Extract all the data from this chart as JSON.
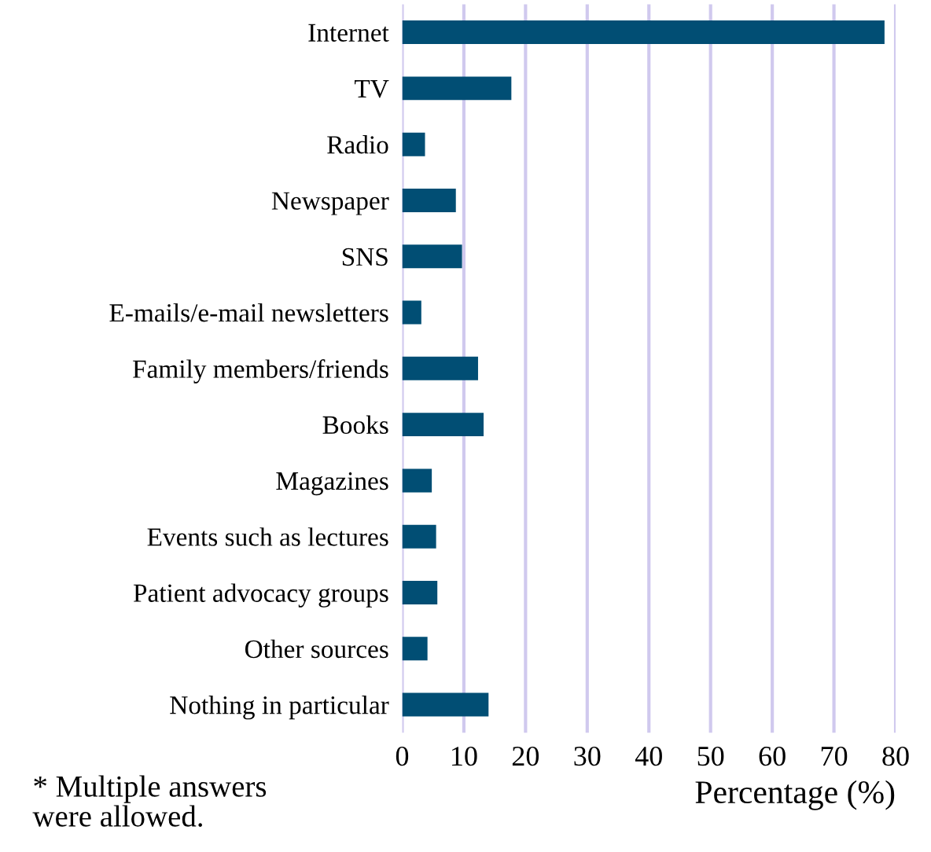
{
  "chart_data": {
    "type": "bar",
    "orientation": "horizontal",
    "categories": [
      "Internet",
      "TV",
      "Radio",
      "Newspaper",
      "SNS",
      "E-mails/e-mail newsletters",
      "Family members/friends",
      "Books",
      "Magazines",
      "Events such as lectures",
      "Patient advocacy groups",
      "Other sources",
      "Nothing in particular"
    ],
    "values": [
      78.2,
      17.7,
      3.7,
      8.7,
      9.7,
      3.1,
      12.3,
      13.2,
      4.8,
      5.5,
      5.7,
      4.1,
      14.0
    ],
    "color": "#014e74",
    "xlim": [
      0,
      80
    ],
    "xticks": [
      0,
      10,
      20,
      30,
      40,
      50,
      60,
      70,
      80
    ],
    "xlabel": "Percentage (%)",
    "grid": "x",
    "annotations": [
      "* Multiple answers\nwere allowed."
    ]
  }
}
